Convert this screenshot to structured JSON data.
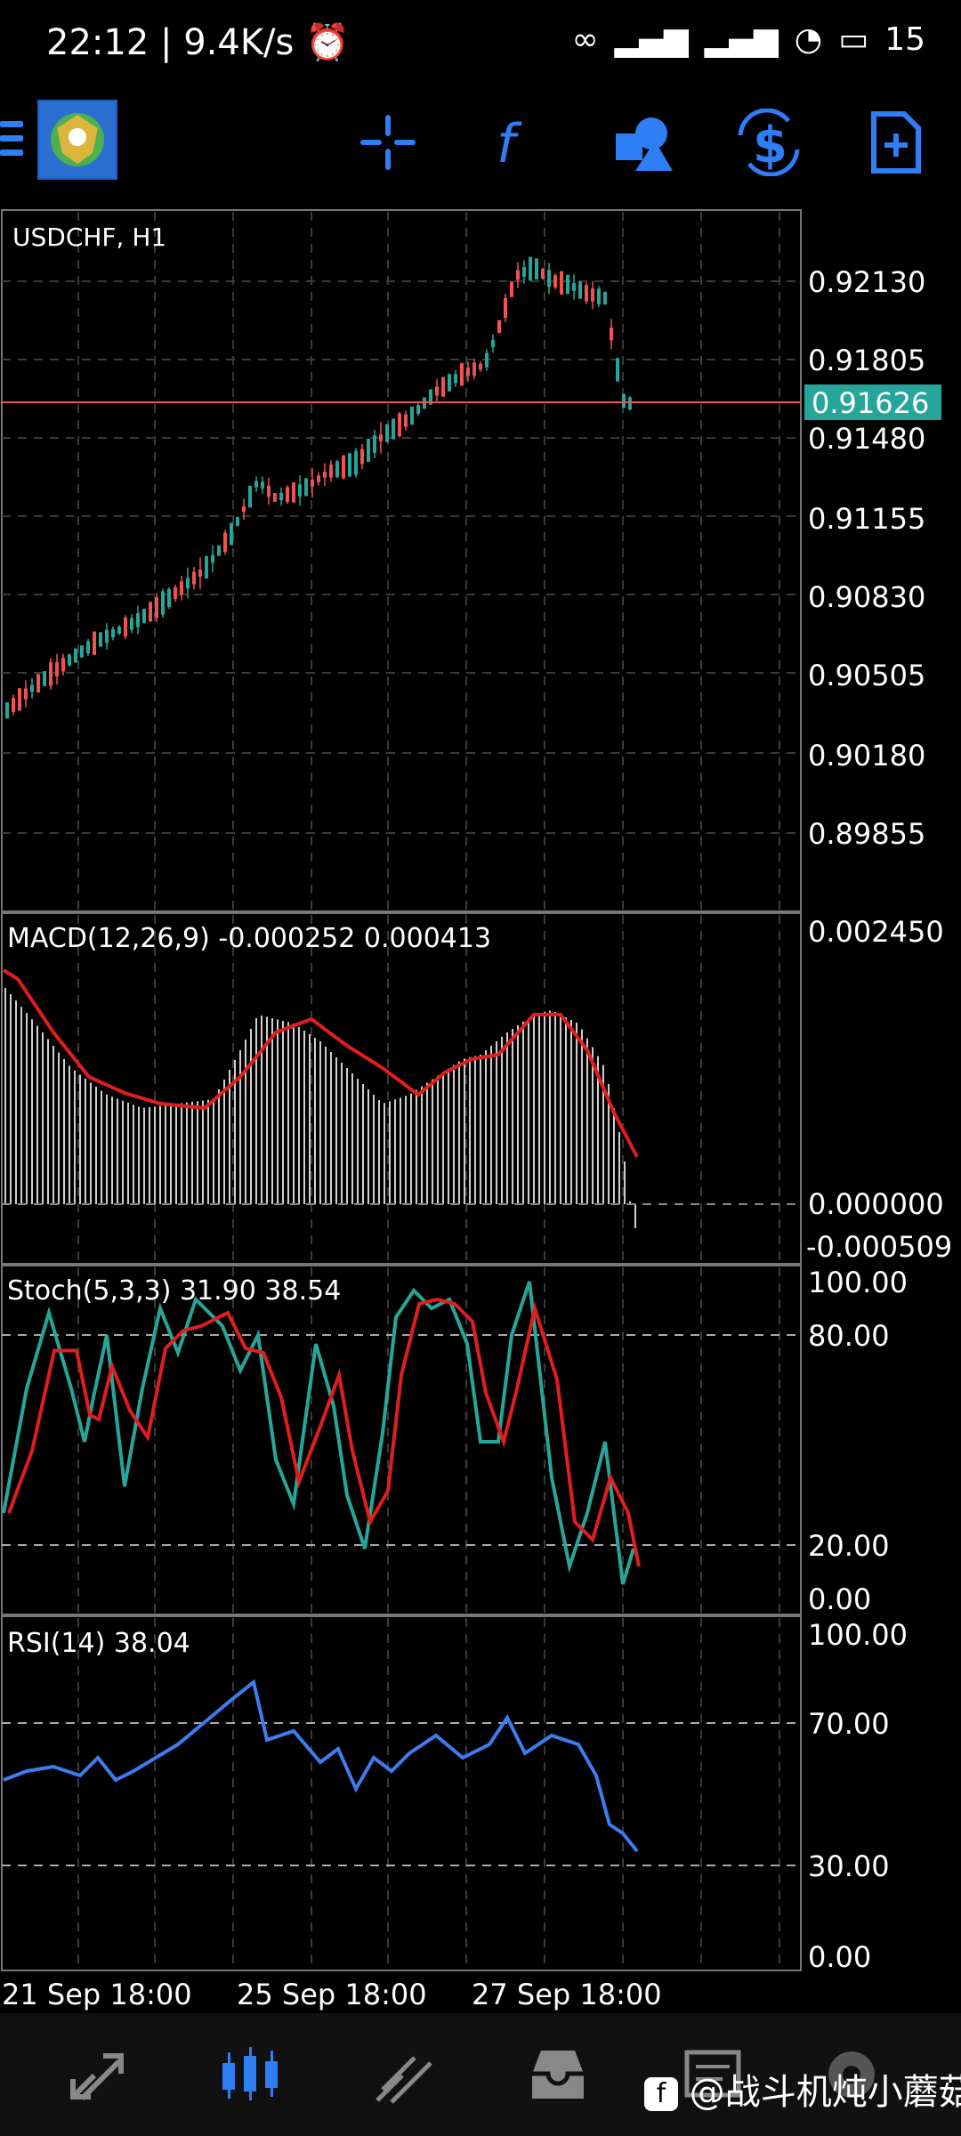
{
  "status_bar": {
    "time": "22:12",
    "net_speed": "9.4K/s",
    "battery": "15"
  },
  "toolbar": {
    "icons": [
      "menu-icon",
      "crosshair-icon",
      "indicator-f-icon",
      "objects-icon",
      "trade-dollar-icon",
      "new-document-icon"
    ]
  },
  "main_chart": {
    "symbol_label": "USDCHF, H1",
    "price_levels": [
      "0.92130",
      "0.91805",
      "0.91480",
      "0.91155",
      "0.90830",
      "0.90505",
      "0.90180",
      "0.89855"
    ],
    "current_price": "0.91626",
    "current_price_color": "#26a69a",
    "bull_color": "#26a69a",
    "bear_color": "#ef5350"
  },
  "macd": {
    "label": "MACD(12,26,9)",
    "value1": "-0.000252",
    "value2": "0.000413",
    "levels": [
      "0.002450",
      "0.000000",
      "-0.000509"
    ]
  },
  "stoch": {
    "label": "Stoch(5,3,3)",
    "value1": "31.90",
    "value2": "38.54",
    "levels": [
      "100.00",
      "80.00",
      "20.00",
      "0.00"
    ]
  },
  "rsi": {
    "label": "RSI(14)",
    "value": "38.04",
    "levels": [
      "100.00",
      "70.00",
      "30.00",
      "0.00"
    ],
    "line_color": "#3d7df0"
  },
  "time_axis": [
    "21 Sep 18:00",
    "25 Sep 18:00",
    "27 Sep 18:00"
  ],
  "bottom_nav": {
    "icons": [
      "quotes-icon",
      "chart-icon",
      "trade-icon",
      "history-icon",
      "messages-icon",
      "settings-icon"
    ]
  },
  "watermark": "@战斗机炖小蘑菇"
}
